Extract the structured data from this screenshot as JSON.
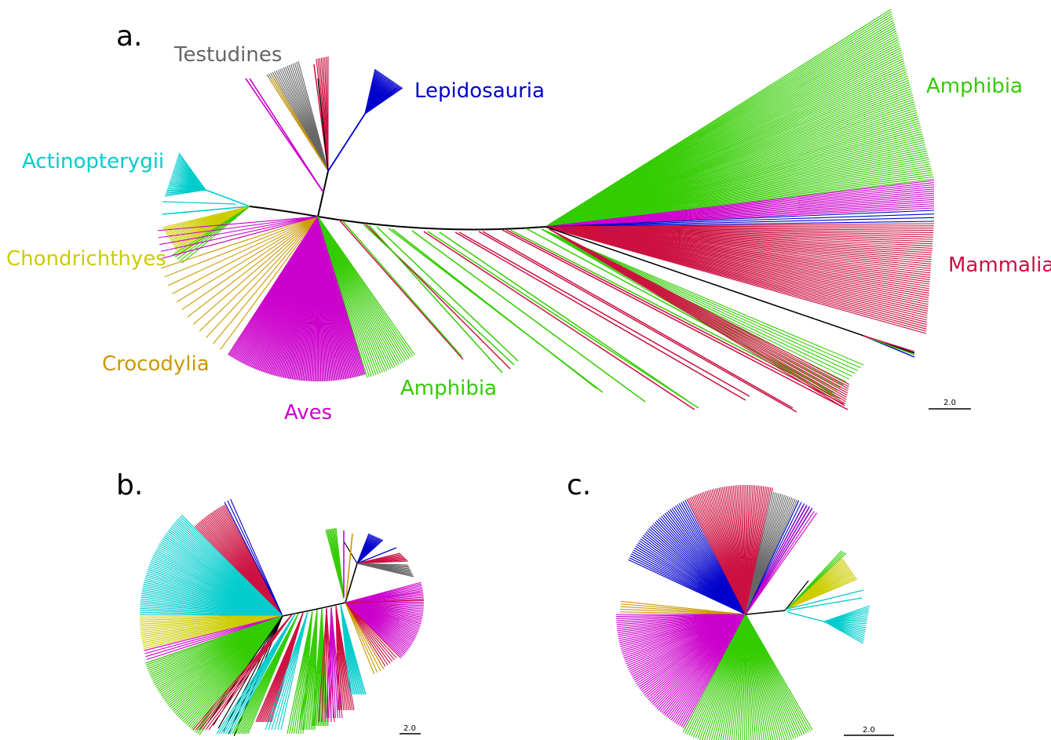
{
  "colors": {
    "amphibia": "#33cc00",
    "mammalia": "#cc1040",
    "aves": "#cc00cc",
    "lepidosauria": "#0000cc",
    "testudines": "#666666",
    "actinopterygii": "#00cccc",
    "chondrichthyes": "#cccc00",
    "crocodylia": "#cc9900",
    "trunk": "#000000"
  },
  "panels": {
    "a": {
      "letter": "a.",
      "scale": "2.0",
      "labels": {
        "amphibia_top": "Amphibia",
        "mammalia": "Mammalia",
        "lepidosauria": "Lepidosauria",
        "testudines": "Testudines",
        "actinopterygii": "Actinopterygii",
        "chondrichthyes": "Chondrichthyes",
        "crocodylia": "Crocodylia",
        "aves": "Aves",
        "amphibia_bottom": "Amphibia"
      }
    },
    "b": {
      "letter": "b.",
      "scale": "2.0"
    },
    "c": {
      "letter": "c.",
      "scale": "2.0"
    }
  }
}
